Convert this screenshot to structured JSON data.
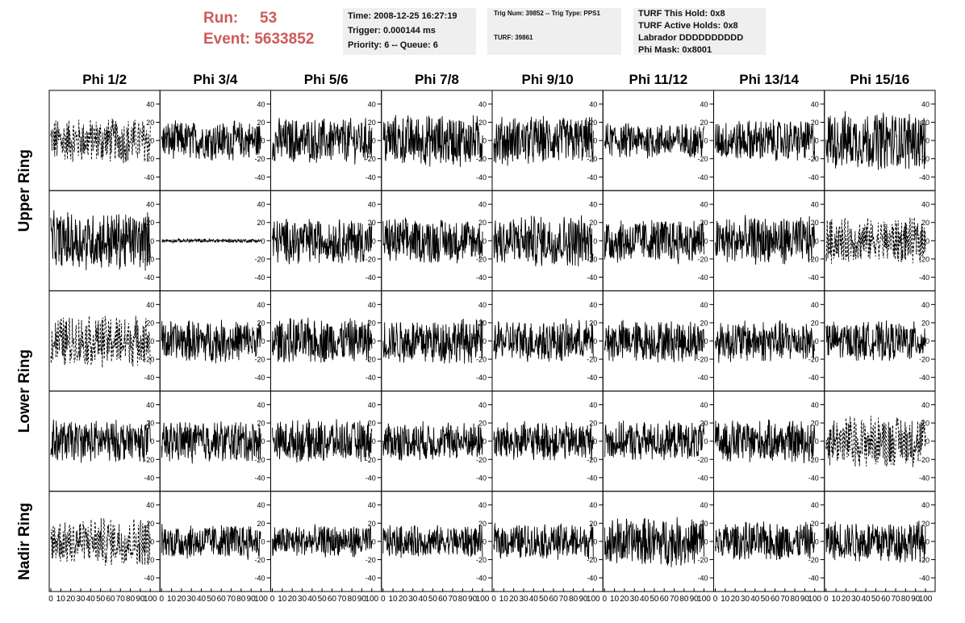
{
  "header": {
    "run_label": "Run:",
    "run_value": "53",
    "event_label": "Event:",
    "event_value": "5633852",
    "time_line": "Time: 2008-12-25 16:27:19",
    "trigger_line": "Trigger: 0.000144 ms",
    "priority_line": "Priority: 6 -- Queue: 6",
    "trig_line": "Trig Num: 39852 -- Trig Type: PPS1",
    "turf_line": "TURF: 39861",
    "turf_hold_line": "TURF This Hold: 0x8",
    "turf_active_line": "TURF Active Holds: 0x8",
    "labrador_line": "Labrador DDDDDDDDDD",
    "phi_mask_line": "Phi Mask: 0x8001"
  },
  "colors": {
    "accent": "#cc5a5a",
    "info_bg": "#efefef",
    "trace": "#000000"
  },
  "chart_data": {
    "type": "line",
    "columns": [
      "Phi 1/2",
      "Phi 3/4",
      "Phi 5/6",
      "Phi 7/8",
      "Phi 9/10",
      "Phi 11/12",
      "Phi 13/14",
      "Phi 15/16"
    ],
    "rows": [
      "Upper Ring",
      "Upper Ring",
      "Lower Ring",
      "Lower Ring",
      "Nadir Ring"
    ],
    "row_labels": [
      "Upper Ring",
      "Lower Ring",
      "Nadir Ring"
    ],
    "x_ticks": [
      "0",
      "10",
      "20",
      "30",
      "40",
      "50",
      "60",
      "70",
      "80",
      "90",
      "100"
    ],
    "y_ticks": [
      "-40",
      "-20",
      "0",
      "20",
      "40"
    ],
    "xlim": [
      0,
      100
    ],
    "ylim": [
      -55,
      55
    ],
    "samples_per_trace": 260,
    "amplitude": [
      [
        14,
        12,
        14,
        16,
        15,
        11,
        13,
        18
      ],
      [
        18,
        1.2,
        14,
        14,
        16,
        14,
        15,
        14
      ],
      [
        16,
        13,
        14,
        14,
        13,
        13,
        13,
        12
      ],
      [
        13,
        13,
        13,
        12,
        12,
        12,
        13,
        16
      ],
      [
        15,
        11,
        10,
        10,
        11,
        15,
        12,
        13
      ]
    ],
    "dashed": [
      [
        true,
        false,
        false,
        false,
        false,
        false,
        false,
        false
      ],
      [
        false,
        false,
        false,
        false,
        false,
        false,
        false,
        true
      ],
      [
        true,
        false,
        false,
        false,
        false,
        false,
        false,
        false
      ],
      [
        false,
        false,
        false,
        false,
        false,
        false,
        false,
        true
      ],
      [
        true,
        false,
        false,
        false,
        false,
        false,
        false,
        false
      ]
    ]
  }
}
